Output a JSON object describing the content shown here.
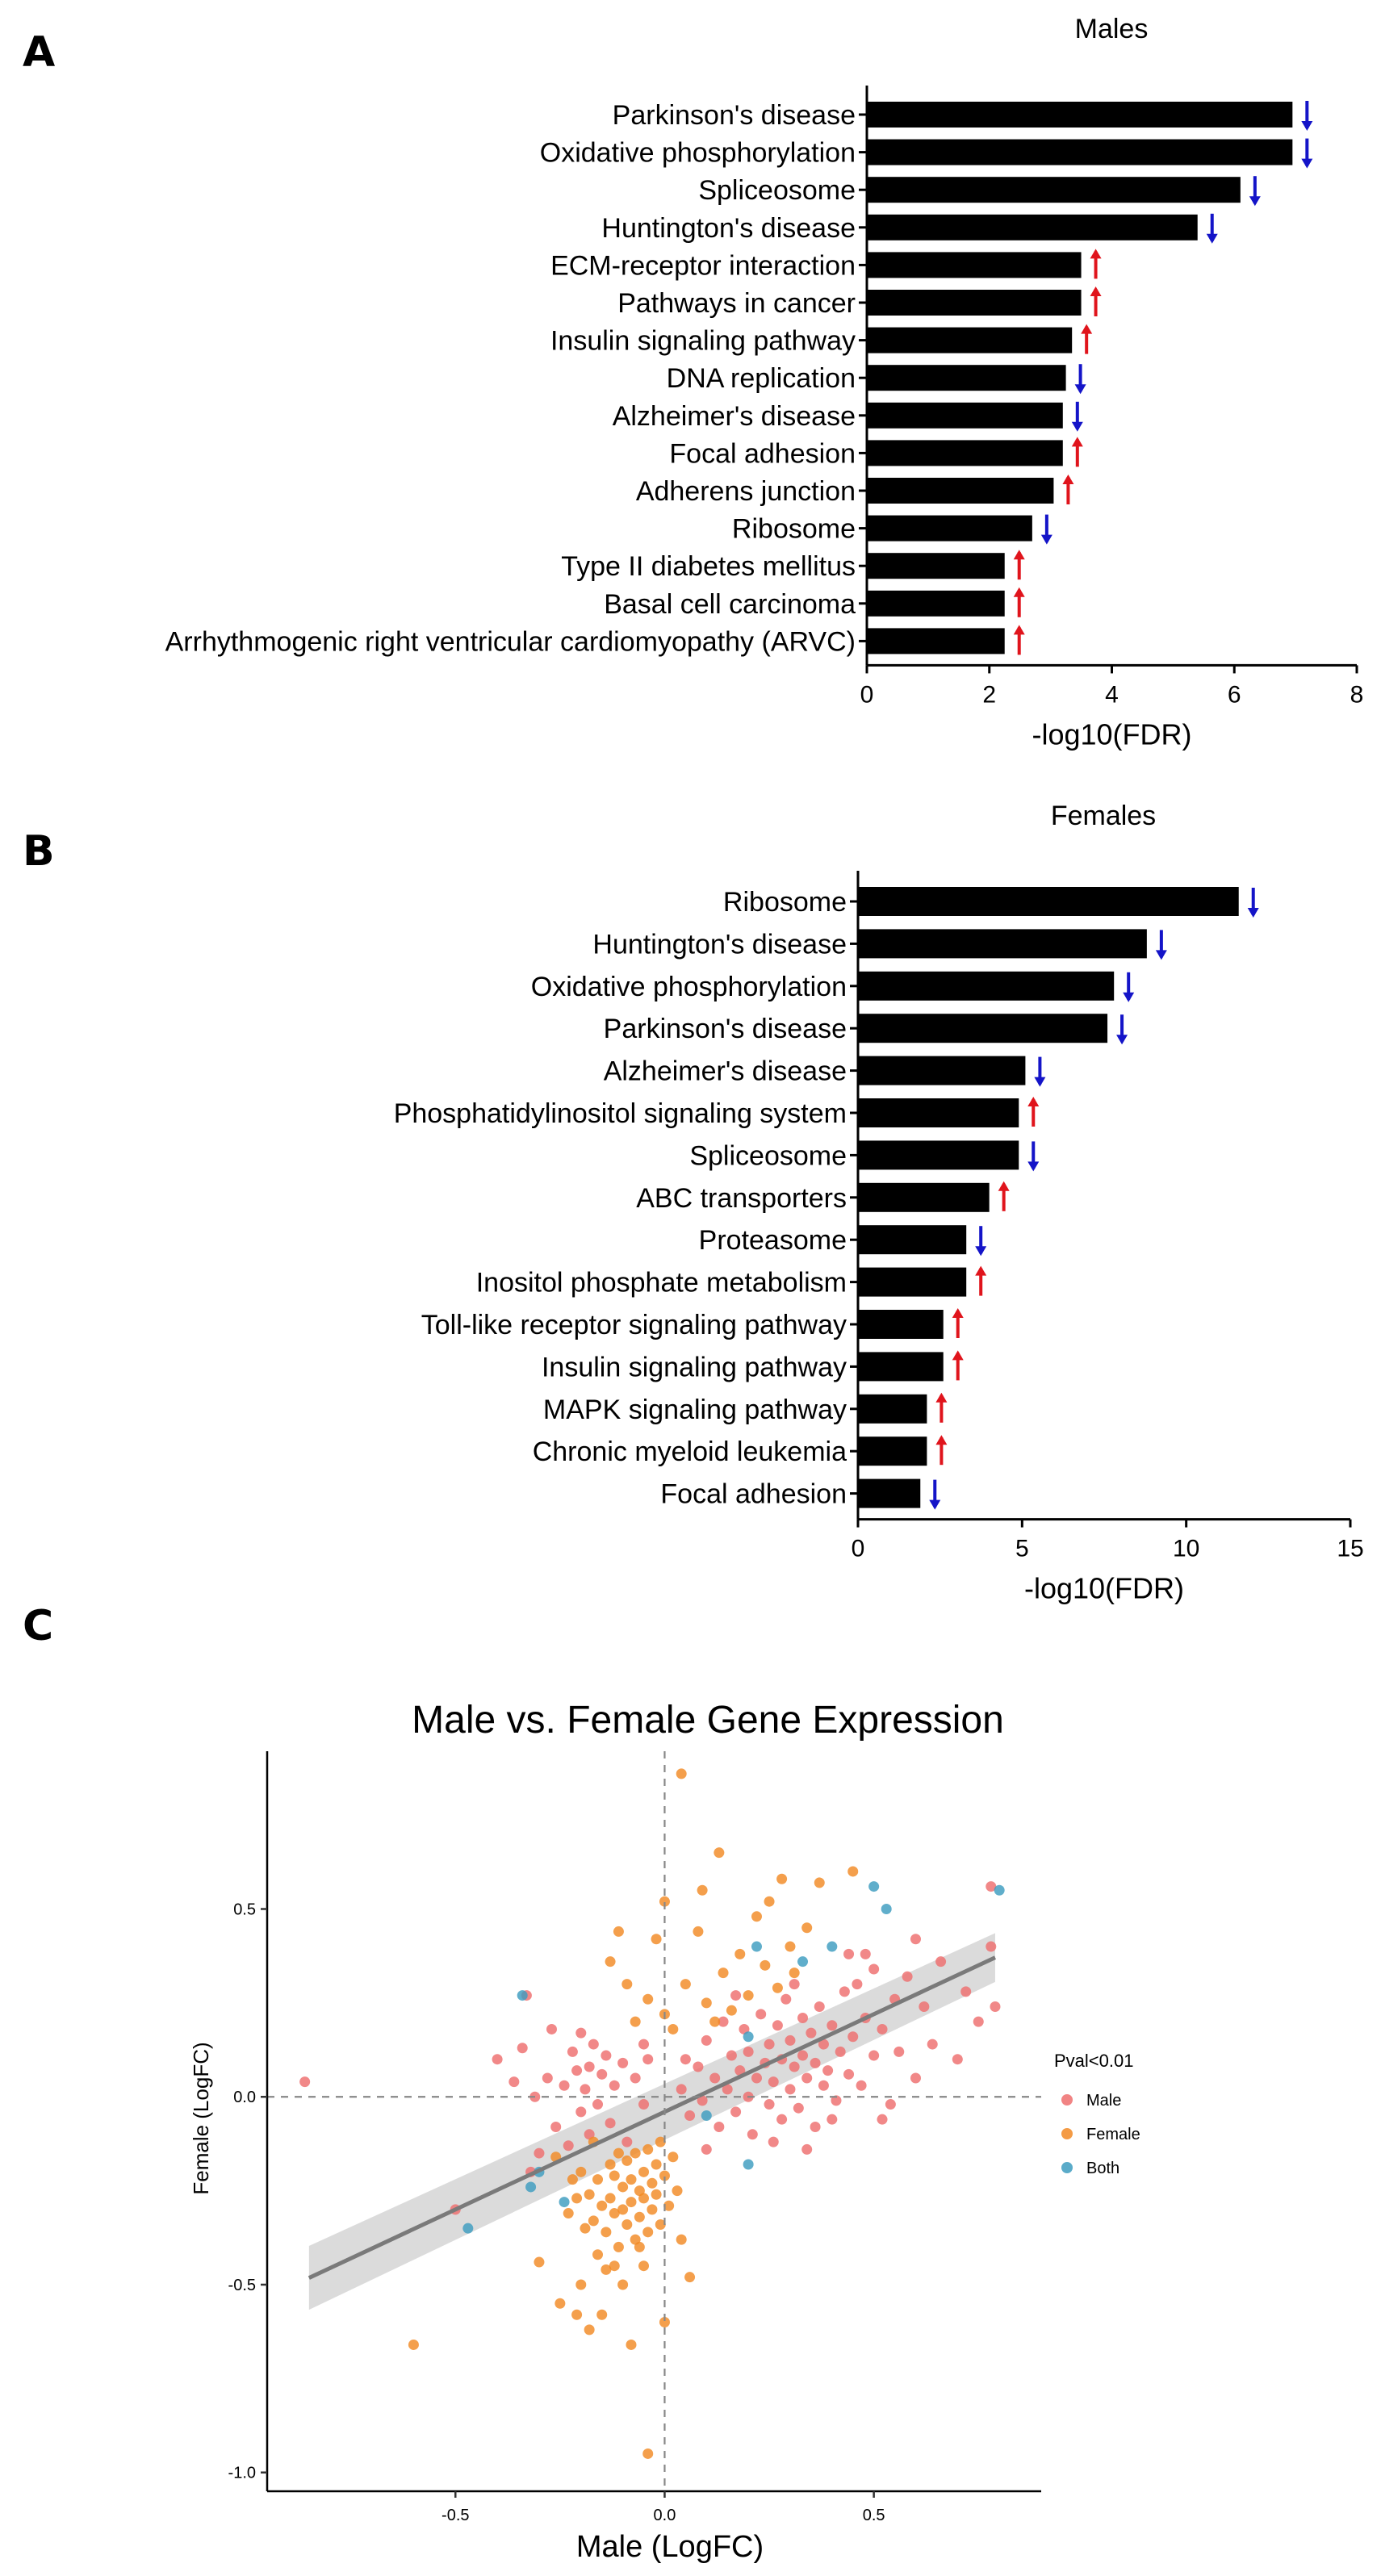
{
  "panels": [
    "A",
    "B",
    "C"
  ],
  "chart_data": [
    {
      "type": "bar",
      "orientation": "horizontal",
      "title": "Males",
      "xlabel": "-log10(FDR)",
      "xlim": [
        0,
        8
      ],
      "xticks": [
        0,
        2,
        4,
        6,
        8
      ],
      "categories": [
        "Parkinson's disease",
        "Oxidative phosphorylation",
        "Spliceosome",
        "Huntington's disease",
        "ECM-receptor interaction",
        "Pathways in cancer",
        "Insulin signaling pathway",
        "DNA replication",
        "Alzheimer's disease",
        "Focal adhesion",
        "Adherens junction",
        "Ribosome",
        "Type II diabetes mellitus",
        "Basal cell carcinoma",
        "Arrhythmogenic right ventricular cardiomyopathy (ARVC)"
      ],
      "values": [
        6.95,
        6.95,
        6.1,
        5.4,
        3.5,
        3.5,
        3.35,
        3.25,
        3.2,
        3.2,
        3.05,
        2.7,
        2.25,
        2.25,
        2.25
      ],
      "direction": [
        "down",
        "down",
        "down",
        "down",
        "up",
        "up",
        "up",
        "down",
        "down",
        "up",
        "up",
        "down",
        "up",
        "up",
        "up"
      ],
      "arrow_colors": {
        "up": "#e0141c",
        "down": "#1414c8"
      }
    },
    {
      "type": "bar",
      "orientation": "horizontal",
      "title": "Females",
      "xlabel": "-log10(FDR)",
      "xlim": [
        0,
        15
      ],
      "xticks": [
        0,
        5,
        10,
        15
      ],
      "categories": [
        "Ribosome",
        "Huntington's disease",
        "Oxidative phosphorylation",
        "Parkinson's disease",
        "Alzheimer's disease",
        "Phosphatidylinositol signaling system",
        "Spliceosome",
        "ABC transporters",
        "Proteasome",
        "Inositol phosphate metabolism",
        "Toll-like receptor signaling pathway",
        "Insulin signaling pathway",
        "MAPK signaling pathway",
        "Chronic myeloid leukemia",
        "Focal adhesion"
      ],
      "values": [
        11.6,
        8.8,
        7.8,
        7.6,
        5.1,
        4.9,
        4.9,
        4.0,
        3.3,
        3.3,
        2.6,
        2.6,
        2.1,
        2.1,
        1.9
      ],
      "direction": [
        "down",
        "down",
        "down",
        "down",
        "down",
        "up",
        "down",
        "up",
        "down",
        "up",
        "up",
        "up",
        "up",
        "up",
        "down"
      ],
      "arrow_colors": {
        "up": "#e0141c",
        "down": "#1414c8"
      }
    },
    {
      "type": "scatter",
      "title": "Male vs. Female Gene Expression",
      "xlabel": "Male (LogFC)",
      "ylabel": "Female (LogFC)",
      "xlim": [
        -0.95,
        0.9
      ],
      "ylim": [
        -1.05,
        0.92
      ],
      "xticks": [
        -0.5,
        0.0,
        0.5
      ],
      "xtick_labels": [
        "-0.5",
        "0.0",
        "0.5"
      ],
      "yticks": [
        -1.0,
        -0.5,
        0.0,
        0.5
      ],
      "ytick_labels": [
        "-1.0",
        "-0.5",
        "0.0",
        "0.5"
      ],
      "legend": {
        "title": "Pval<0.01",
        "entries": [
          {
            "name": "Male",
            "color": "#ee6e6e"
          },
          {
            "name": "Female",
            "color": "#f28a24"
          },
          {
            "name": "Both",
            "color": "#3d9cc0"
          }
        ],
        "position": "right"
      },
      "regression": {
        "slope": 0.52,
        "intercept": -0.04,
        "x_range": [
          -0.85,
          0.79
        ]
      },
      "reference_lines": {
        "x": 0,
        "y": 0
      },
      "series": [
        {
          "name": "Male",
          "points": [
            [
              -0.86,
              0.04
            ],
            [
              -0.5,
              -0.3
            ],
            [
              -0.4,
              0.1
            ],
            [
              -0.34,
              0.13
            ],
            [
              -0.32,
              -0.2
            ],
            [
              -0.28,
              0.05
            ],
            [
              -0.26,
              -0.08
            ],
            [
              -0.24,
              0.03
            ],
            [
              -0.22,
              0.12
            ],
            [
              -0.2,
              -0.04
            ],
            [
              -0.2,
              0.17
            ],
            [
              -0.19,
              0.02
            ],
            [
              -0.18,
              -0.1
            ],
            [
              -0.18,
              0.08
            ],
            [
              -0.17,
              0.14
            ],
            [
              -0.16,
              -0.02
            ],
            [
              -0.15,
              0.06
            ],
            [
              -0.14,
              0.11
            ],
            [
              -0.13,
              -0.07
            ],
            [
              -0.12,
              0.03
            ],
            [
              -0.1,
              0.09
            ],
            [
              -0.09,
              -0.12
            ],
            [
              -0.07,
              0.05
            ],
            [
              -0.05,
              0.14
            ],
            [
              -0.05,
              -0.02
            ],
            [
              -0.04,
              0.1
            ],
            [
              -0.3,
              -0.15
            ],
            [
              -0.27,
              0.18
            ],
            [
              -0.23,
              -0.13
            ],
            [
              -0.21,
              0.07
            ],
            [
              0.04,
              0.02
            ],
            [
              0.05,
              0.1
            ],
            [
              0.06,
              -0.05
            ],
            [
              0.08,
              0.08
            ],
            [
              0.09,
              -0.01
            ],
            [
              0.1,
              0.15
            ],
            [
              0.12,
              0.05
            ],
            [
              0.13,
              -0.08
            ],
            [
              0.14,
              0.2
            ],
            [
              0.15,
              0.02
            ],
            [
              0.16,
              0.11
            ],
            [
              0.17,
              -0.04
            ],
            [
              0.18,
              0.07
            ],
            [
              0.19,
              0.18
            ],
            [
              0.2,
              0.0
            ],
            [
              0.2,
              0.12
            ],
            [
              0.21,
              -0.1
            ],
            [
              0.22,
              0.05
            ],
            [
              0.23,
              0.22
            ],
            [
              0.24,
              0.09
            ],
            [
              0.25,
              -0.02
            ],
            [
              0.25,
              0.14
            ],
            [
              0.26,
              0.04
            ],
            [
              0.27,
              0.19
            ],
            [
              0.28,
              -0.06
            ],
            [
              0.28,
              0.1
            ],
            [
              0.29,
              0.26
            ],
            [
              0.3,
              0.02
            ],
            [
              0.3,
              0.15
            ],
            [
              0.31,
              0.08
            ],
            [
              0.32,
              -0.03
            ],
            [
              0.33,
              0.21
            ],
            [
              0.33,
              0.11
            ],
            [
              0.34,
              0.05
            ],
            [
              0.35,
              0.17
            ],
            [
              0.36,
              -0.08
            ],
            [
              0.36,
              0.09
            ],
            [
              0.37,
              0.24
            ],
            [
              0.38,
              0.03
            ],
            [
              0.38,
              0.14
            ],
            [
              0.39,
              0.07
            ],
            [
              0.4,
              0.19
            ],
            [
              0.41,
              -0.01
            ],
            [
              0.42,
              0.12
            ],
            [
              0.43,
              0.28
            ],
            [
              0.44,
              0.06
            ],
            [
              0.45,
              0.16
            ],
            [
              0.46,
              0.3
            ],
            [
              0.47,
              0.03
            ],
            [
              0.48,
              0.21
            ],
            [
              0.5,
              0.11
            ],
            [
              0.5,
              0.34
            ],
            [
              0.52,
              0.18
            ],
            [
              0.54,
              -0.02
            ],
            [
              0.55,
              0.26
            ],
            [
              0.56,
              0.12
            ],
            [
              0.58,
              0.32
            ],
            [
              0.6,
              0.05
            ],
            [
              0.62,
              0.24
            ],
            [
              0.64,
              0.14
            ],
            [
              0.66,
              0.36
            ],
            [
              0.7,
              0.1
            ],
            [
              0.72,
              0.28
            ],
            [
              0.75,
              0.2
            ],
            [
              0.78,
              0.4
            ],
            [
              0.79,
              0.24
            ],
            [
              0.78,
              0.56
            ],
            [
              0.1,
              -0.14
            ],
            [
              0.17,
              0.27
            ],
            [
              0.26,
              -0.12
            ],
            [
              0.31,
              0.3
            ],
            [
              0.4,
              -0.06
            ],
            [
              0.44,
              0.38
            ],
            [
              0.34,
              -0.14
            ],
            [
              0.6,
              0.42
            ],
            [
              -0.36,
              0.04
            ],
            [
              -0.33,
              0.27
            ],
            [
              -0.31,
              0.0
            ],
            [
              0.48,
              0.38
            ],
            [
              0.52,
              -0.06
            ]
          ]
        },
        {
          "name": "Female",
          "points": [
            [
              0.04,
              0.86
            ],
            [
              0.13,
              0.65
            ],
            [
              0.0,
              0.52
            ],
            [
              0.28,
              0.58
            ],
            [
              0.37,
              0.57
            ],
            [
              0.45,
              0.6
            ],
            [
              0.22,
              0.48
            ],
            [
              -0.02,
              0.42
            ],
            [
              0.08,
              0.44
            ],
            [
              0.18,
              0.38
            ],
            [
              0.3,
              0.4
            ],
            [
              0.34,
              0.45
            ],
            [
              -0.13,
              0.36
            ],
            [
              -0.09,
              0.3
            ],
            [
              -0.04,
              0.26
            ],
            [
              0.0,
              0.22
            ],
            [
              0.05,
              0.3
            ],
            [
              0.1,
              0.25
            ],
            [
              0.14,
              0.33
            ],
            [
              0.2,
              0.27
            ],
            [
              0.24,
              0.35
            ],
            [
              0.27,
              0.29
            ],
            [
              0.31,
              0.33
            ],
            [
              -0.07,
              0.2
            ],
            [
              0.02,
              0.18
            ],
            [
              0.12,
              0.2
            ],
            [
              0.16,
              0.23
            ],
            [
              -0.11,
              0.44
            ],
            [
              0.09,
              0.55
            ],
            [
              0.25,
              0.52
            ],
            [
              -0.2,
              -0.2
            ],
            [
              -0.18,
              -0.26
            ],
            [
              -0.17,
              -0.33
            ],
            [
              -0.16,
              -0.22
            ],
            [
              -0.15,
              -0.29
            ],
            [
              -0.14,
              -0.36
            ],
            [
              -0.13,
              -0.18
            ],
            [
              -0.13,
              -0.27
            ],
            [
              -0.12,
              -0.31
            ],
            [
              -0.12,
              -0.21
            ],
            [
              -0.11,
              -0.4
            ],
            [
              -0.1,
              -0.24
            ],
            [
              -0.1,
              -0.3
            ],
            [
              -0.09,
              -0.17
            ],
            [
              -0.09,
              -0.34
            ],
            [
              -0.08,
              -0.22
            ],
            [
              -0.08,
              -0.28
            ],
            [
              -0.07,
              -0.38
            ],
            [
              -0.07,
              -0.15
            ],
            [
              -0.06,
              -0.25
            ],
            [
              -0.06,
              -0.32
            ],
            [
              -0.05,
              -0.2
            ],
            [
              -0.05,
              -0.27
            ],
            [
              -0.04,
              -0.36
            ],
            [
              -0.04,
              -0.14
            ],
            [
              -0.03,
              -0.23
            ],
            [
              -0.03,
              -0.3
            ],
            [
              -0.02,
              -0.18
            ],
            [
              -0.02,
              -0.26
            ],
            [
              -0.01,
              -0.34
            ],
            [
              0.0,
              -0.21
            ],
            [
              0.01,
              -0.29
            ],
            [
              0.02,
              -0.16
            ],
            [
              0.03,
              -0.25
            ],
            [
              -0.19,
              -0.35
            ],
            [
              -0.21,
              -0.27
            ],
            [
              -0.23,
              -0.31
            ],
            [
              -0.16,
              -0.42
            ],
            [
              -0.14,
              -0.46
            ],
            [
              -0.11,
              -0.15
            ],
            [
              -0.25,
              -0.55
            ],
            [
              -0.21,
              -0.58
            ],
            [
              -0.18,
              -0.62
            ],
            [
              -0.15,
              -0.58
            ],
            [
              -0.1,
              -0.5
            ],
            [
              -0.05,
              -0.45
            ],
            [
              -0.08,
              -0.66
            ],
            [
              0.0,
              -0.6
            ],
            [
              -0.6,
              -0.66
            ],
            [
              -0.04,
              -0.95
            ],
            [
              0.06,
              -0.48
            ],
            [
              -0.2,
              -0.5
            ],
            [
              -0.3,
              -0.44
            ],
            [
              -0.26,
              -0.16
            ],
            [
              -0.22,
              -0.22
            ],
            [
              -0.17,
              -0.12
            ],
            [
              -0.12,
              -0.45
            ],
            [
              -0.06,
              -0.4
            ],
            [
              0.04,
              -0.38
            ],
            [
              -0.01,
              -0.12
            ]
          ]
        },
        {
          "name": "Both",
          "points": [
            [
              -0.34,
              0.27
            ],
            [
              -0.47,
              -0.35
            ],
            [
              -0.3,
              -0.2
            ],
            [
              -0.24,
              -0.28
            ],
            [
              0.2,
              0.16
            ],
            [
              0.33,
              0.36
            ],
            [
              0.4,
              0.4
            ],
            [
              0.5,
              0.56
            ],
            [
              0.53,
              0.5
            ],
            [
              0.8,
              0.55
            ],
            [
              0.1,
              -0.05
            ],
            [
              0.2,
              -0.18
            ],
            [
              0.22,
              0.4
            ],
            [
              -0.32,
              -0.24
            ]
          ]
        }
      ]
    }
  ]
}
